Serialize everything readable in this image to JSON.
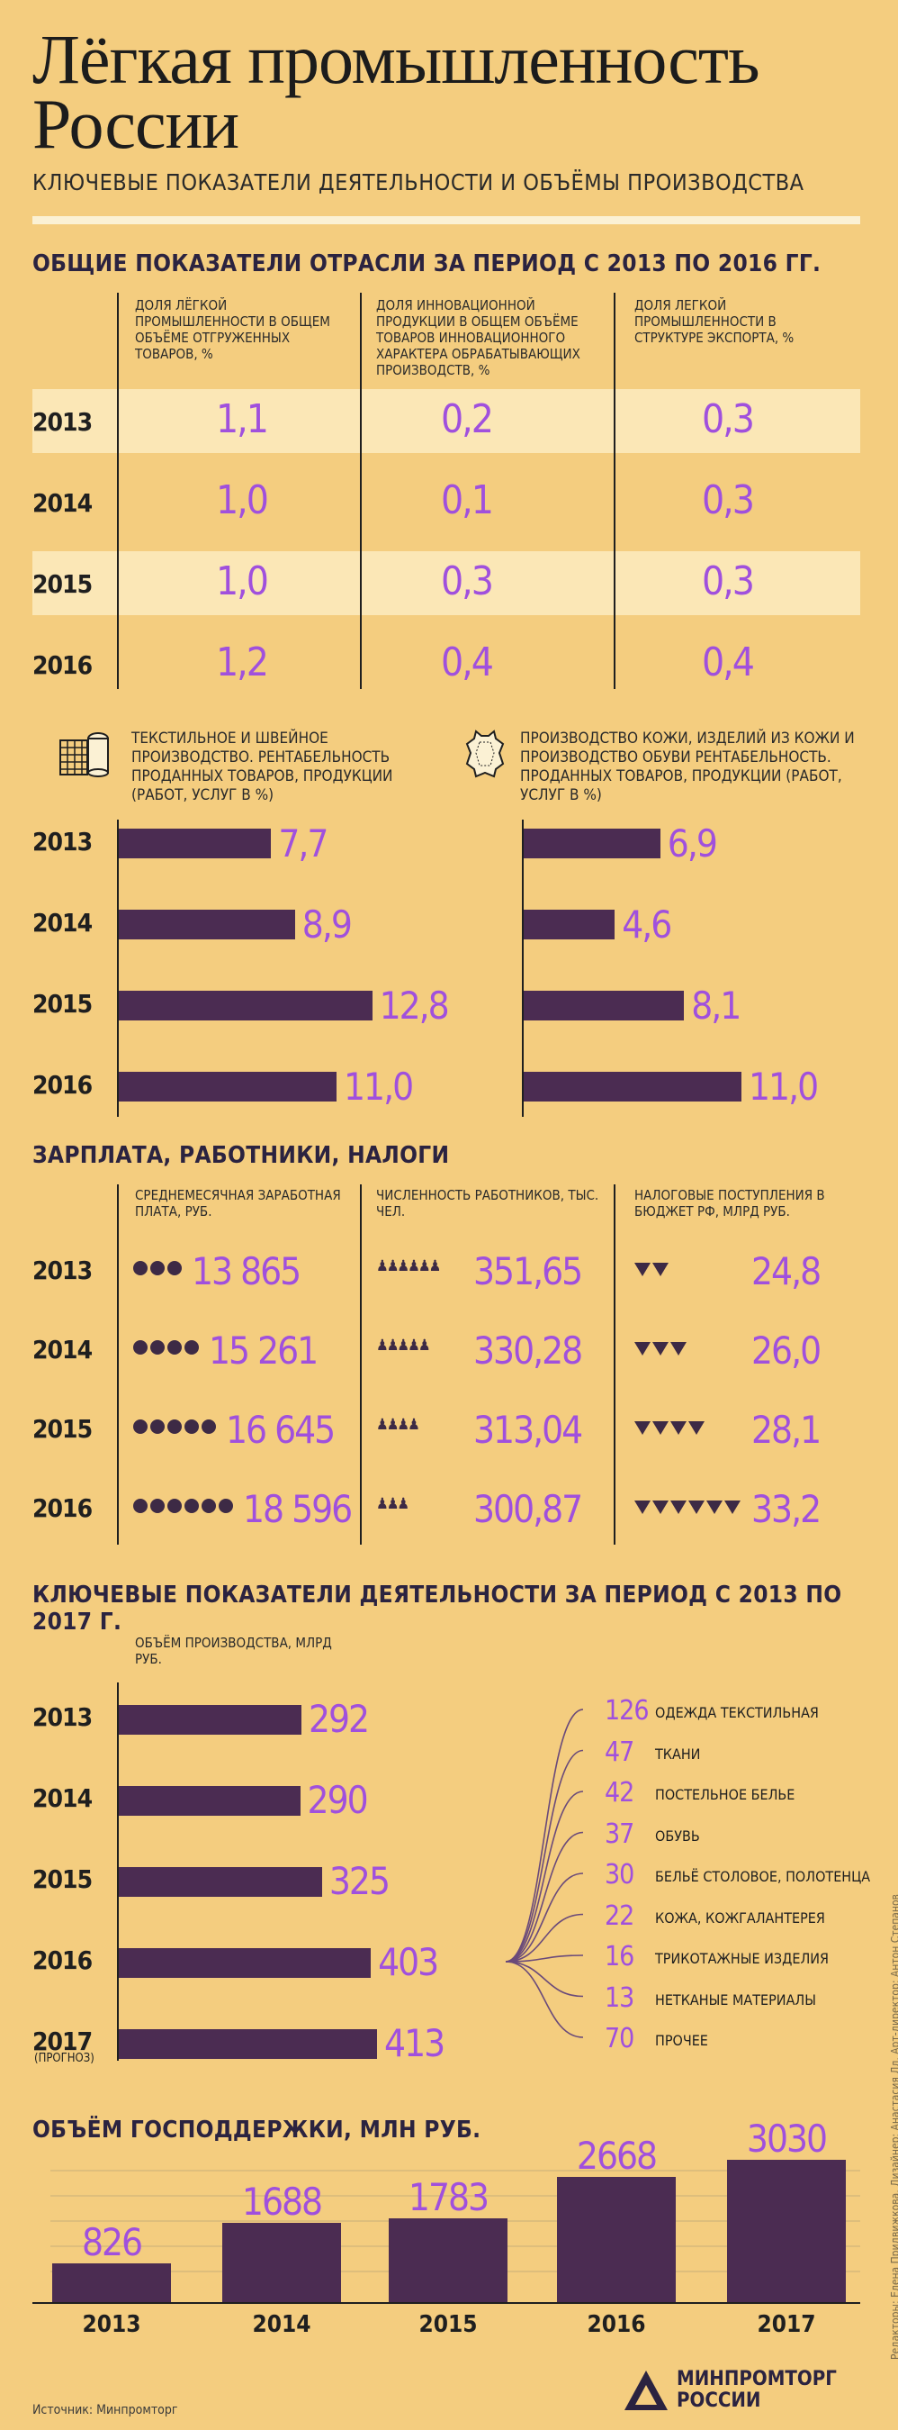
{
  "header": {
    "title_line1": "Лёгкая промышленность",
    "title_line2": "России",
    "subtitle": "КЛЮЧЕВЫЕ ПОКАЗАТЕЛИ ДЕЯТЕЛЬНОСТИ И ОБЪЁМЫ ПРОИЗВОДСТВА"
  },
  "section1": {
    "title": "ОБЩИЕ ПОКАЗАТЕЛИ ОТРАСЛИ ЗА ПЕРИОД С 2013 ПО 2016 ГГ.",
    "col1": "ДОЛЯ ЛЁГКОЙ ПРОМЫШЛЕННОСТИ В ОБЩЕМ ОБЪЁМЕ ОТГРУЖЕННЫХ ТОВАРОВ, %",
    "col2": "ДОЛЯ ИННОВАЦИОННОЙ ПРОДУКЦИИ В ОБЩЕМ ОБЪЁМЕ ТОВАРОВ ИННОВАЦИОННОГО ХАРАКТЕРА ОБРАБАТЫВАЮЩИХ ПРОИЗВОДСТВ, %",
    "col3": "ДОЛЯ ЛЕГКОЙ ПРОМЫШЛЕННОСТИ В СТРУКТУРЕ ЭКСПОРТА, %",
    "rows": [
      {
        "year": "2013",
        "v1": "1,1",
        "v2": "0,2",
        "v3": "0,3"
      },
      {
        "year": "2014",
        "v1": "1,0",
        "v2": "0,1",
        "v3": "0,3"
      },
      {
        "year": "2015",
        "v1": "1,0",
        "v2": "0,3",
        "v3": "0,3"
      },
      {
        "year": "2016",
        "v1": "1,2",
        "v2": "0,4",
        "v3": "0,4"
      }
    ]
  },
  "section2": {
    "left_label": "ТЕКСТИЛЬНОЕ И ШВЕЙНОЕ ПРОИЗВОДСТВО. РЕНТАБЕЛЬНОСТЬ ПРОДАННЫХ ТОВАРОВ, ПРОДУКЦИИ (РАБОТ, УСЛУГ В %)",
    "right_label": "ПРОИЗВОДСТВО КОЖИ, ИЗДЕЛИЙ ИЗ КОЖИ И ПРОИЗВОДСТВО ОБУВИ РЕНТАБЕЛЬНОСТЬ. ПРОДАННЫХ ТОВАРОВ, ПРОДУКЦИИ (РАБОТ, УСЛУГ В %)",
    "years": [
      "2013",
      "2014",
      "2015",
      "2016"
    ],
    "left_labels": [
      "7,7",
      "8,9",
      "12,8",
      "11,0"
    ],
    "right_labels": [
      "6,9",
      "4,6",
      "8,1",
      "11,0"
    ]
  },
  "section3": {
    "title": "ЗАРПЛАТА, РАБОТНИКИ, НАЛОГИ",
    "col1": "СРЕДНЕМЕСЯЧНАЯ ЗАРАБОТНАЯ ПЛАТА, РУБ.",
    "col2": "ЧИСЛЕННОСТЬ РАБОТНИКОВ, ТЫС. ЧЕЛ.",
    "col3": "НАЛОГОВЫЕ ПОСТУПЛЕНИЯ В БЮДЖЕТ РФ, МЛРД РУБ.",
    "rows": [
      {
        "year": "2013",
        "salary": "13 865",
        "workers": "351,65",
        "taxes": "24,8"
      },
      {
        "year": "2014",
        "salary": "15 261",
        "workers": "330,28",
        "taxes": "26,0"
      },
      {
        "year": "2015",
        "salary": "16 645",
        "workers": "313,04",
        "taxes": "28,1"
      },
      {
        "year": "2016",
        "salary": "18 596",
        "workers": "300,87",
        "taxes": "33,2"
      }
    ]
  },
  "section4": {
    "title": "КЛЮЧЕВЫЕ ПОКАЗАТЕЛИ ДЕЯТЕЛЬНОСТИ ЗА ПЕРИОД С 2013 ПО 2017 Г.",
    "axis_label": "ОБЪЁМ ПРОИЗВОДСТВА, МЛРД РУБ.",
    "years": [
      "2013",
      "2014",
      "2015",
      "2016",
      "2017"
    ],
    "forecast_note": "(ПРОГНОЗ)",
    "value_labels": [
      "292",
      "290",
      "325",
      "403",
      "413"
    ],
    "breakdown": [
      {
        "value": "126",
        "label": "ОДЕЖДА ТЕКСТИЛЬНАЯ"
      },
      {
        "value": "47",
        "label": "ТКАНИ"
      },
      {
        "value": "42",
        "label": "ПОСТЕЛЬНОЕ БЕЛЬЕ"
      },
      {
        "value": "37",
        "label": "ОБУВЬ"
      },
      {
        "value": "30",
        "label": "БЕЛЬЁ СТОЛОВОЕ, ПОЛОТЕНЦА"
      },
      {
        "value": "22",
        "label": "КОЖА, КОЖГАЛАНТЕРЕЯ"
      },
      {
        "value": "16",
        "label": "ТРИКОТАЖНЫЕ ИЗДЕЛИЯ"
      },
      {
        "value": "13",
        "label": "НЕТКАНЫЕ МАТЕРИАЛЫ"
      },
      {
        "value": "70",
        "label": "ПРОЧЕЕ"
      }
    ]
  },
  "section5": {
    "title": "ОБЪЁМ ГОСПОДДЕРЖКИ, МЛН РУБ.",
    "years": [
      "2013",
      "2014",
      "2015",
      "2016",
      "2017"
    ],
    "value_labels": [
      "826",
      "1688",
      "1783",
      "2668",
      "3030"
    ]
  },
  "footer": {
    "source": "Источник: Минпромторг",
    "logo_line1": "МИНПРОМТОРГ",
    "logo_line2": "РОССИИ",
    "credits": "Редакторы: Елена Придвижкова, Дизайнер: Анастасия Лл, Арт-директор: Антон Степанов"
  },
  "colors": {
    "background": "#f4cd7f",
    "bar": "#4b2c52",
    "accent": "#a050dd",
    "stripe": "#fbe7b6"
  },
  "chart_data": [
    {
      "type": "table",
      "title": "ОБЩИЕ ПОКАЗАТЕЛИ ОТРАСЛИ ЗА ПЕРИОД С 2013 ПО 2016 ГГ.",
      "categories": [
        "2013",
        "2014",
        "2015",
        "2016"
      ],
      "series": [
        {
          "name": "ДОЛЯ ЛЁГКОЙ ПРОМЫШЛЕННОСТИ В ОБЩЕМ ОБЪЁМЕ ОТГРУЖЕННЫХ ТОВАРОВ, %",
          "values": [
            1.1,
            1.0,
            1.0,
            1.2
          ]
        },
        {
          "name": "ДОЛЯ ИННОВАЦИОННОЙ ПРОДУКЦИИ В ОБЩЕМ ОБЪЁМЕ ТОВАРОВ ИННОВАЦИОННОГО ХАРАКТЕРА ОБРАБАТЫВАЮЩИХ ПРОИЗВОДСТВ, %",
          "values": [
            0.2,
            0.1,
            0.3,
            0.4
          ]
        },
        {
          "name": "ДОЛЯ ЛЕГКОЙ ПРОМЫШЛЕННОСТИ В СТРУКТУРЕ ЭКСПОРТА, %",
          "values": [
            0.3,
            0.3,
            0.3,
            0.4
          ]
        }
      ]
    },
    {
      "type": "bar",
      "orientation": "horizontal",
      "categories": [
        "2013",
        "2014",
        "2015",
        "2016"
      ],
      "series": [
        {
          "name": "ТЕКСТИЛЬНОЕ И ШВЕЙНОЕ ПРОИЗВОДСТВО. РЕНТАБЕЛЬНОСТЬ ПРОДАННЫХ ТОВАРОВ, ПРОДУКЦИИ (РАБОТ, УСЛУГ В %)",
          "values": [
            7.7,
            8.9,
            12.8,
            11.0
          ]
        },
        {
          "name": "ПРОИЗВОДСТВО КОЖИ, ИЗДЕЛИЙ ИЗ КОЖИ И ПРОИЗВОДСТВО ОБУВИ РЕНТАБЕЛЬНОСТЬ. ПРОДАННЫХ ТОВАРОВ, ПРОДУКЦИИ (РАБОТ, УСЛУГ В %)",
          "values": [
            6.9,
            4.6,
            8.1,
            11.0
          ]
        }
      ]
    },
    {
      "type": "table",
      "title": "ЗАРПЛАТА, РАБОТНИКИ, НАЛОГИ",
      "categories": [
        "2013",
        "2014",
        "2015",
        "2016"
      ],
      "series": [
        {
          "name": "СРЕДНЕМЕСЯЧНАЯ ЗАРАБОТНАЯ ПЛАТА, РУБ.",
          "values": [
            13865,
            15261,
            16645,
            18596
          ]
        },
        {
          "name": "ЧИСЛЕННОСТЬ РАБОТНИКОВ, ТЫС. ЧЕЛ.",
          "values": [
            351.65,
            330.28,
            313.04,
            300.87
          ]
        },
        {
          "name": "НАЛОГОВЫЕ ПОСТУПЛЕНИЯ В БЮДЖЕТ РФ, МЛРД РУБ.",
          "values": [
            24.8,
            26.0,
            28.1,
            33.2
          ]
        }
      ]
    },
    {
      "type": "bar",
      "orientation": "horizontal",
      "title": "КЛЮЧЕВЫЕ ПОКАЗАТЕЛИ ДЕЯТЕЛЬНОСТИ ЗА ПЕРИОД С 2013 ПО 2017 Г.",
      "xlabel": "ОБЪЁМ ПРОИЗВОДСТВА, МЛРД РУБ.",
      "categories": [
        "2013",
        "2014",
        "2015",
        "2016",
        "2017"
      ],
      "values": [
        292,
        290,
        325,
        403,
        413
      ],
      "breakdown_2016": {
        "categories": [
          "ОДЕЖДА ТЕКСТИЛЬНАЯ",
          "ТКАНИ",
          "ПОСТЕЛЬНОЕ БЕЛЬЕ",
          "ОБУВЬ",
          "БЕЛЬЁ СТОЛОВОЕ, ПОЛОТЕНЦА",
          "КОЖА, КОЖГАЛАНТЕРЕЯ",
          "ТРИКОТАЖНЫЕ ИЗДЕЛИЯ",
          "НЕТКАНЫЕ МАТЕРИАЛЫ",
          "ПРОЧЕЕ"
        ],
        "values": [
          126,
          47,
          42,
          37,
          30,
          22,
          16,
          13,
          70
        ]
      }
    },
    {
      "type": "bar",
      "title": "ОБЪЁМ ГОСПОДДЕРЖКИ, МЛН РУБ.",
      "categories": [
        "2013",
        "2014",
        "2015",
        "2016",
        "2017"
      ],
      "values": [
        826,
        1688,
        1783,
        2668,
        3030
      ]
    }
  ]
}
